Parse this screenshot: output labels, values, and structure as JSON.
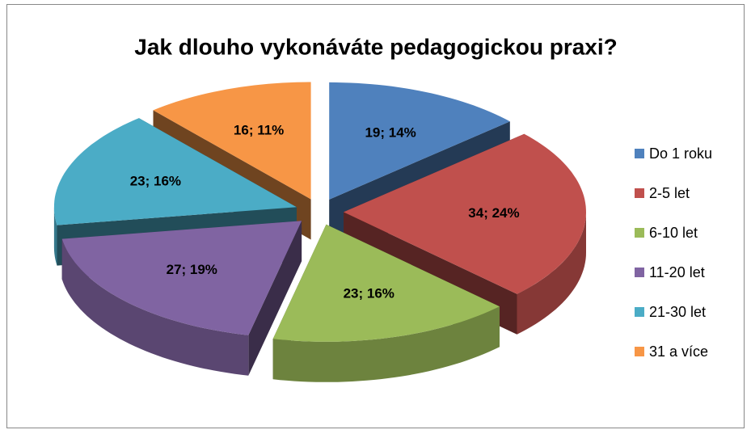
{
  "chart_data": {
    "type": "pie",
    "title": "Jak dlouho vykonáváte pedagogickou praxi?",
    "categories": [
      "Do 1 roku",
      "2-5 let",
      "6-10 let",
      "11-20 let",
      "21-30 let",
      "31 a více"
    ],
    "values": [
      19,
      34,
      23,
      27,
      23,
      16
    ],
    "value_labels": [
      "19; 14%",
      "34; 24%",
      "23; 16%",
      "27; 19%",
      "23; 16%",
      "16; 11%"
    ],
    "colors": [
      "#4f81bd",
      "#c0504d",
      "#9bbb59",
      "#8064a2",
      "#4bacc6",
      "#f79646"
    ],
    "legend": "right"
  }
}
